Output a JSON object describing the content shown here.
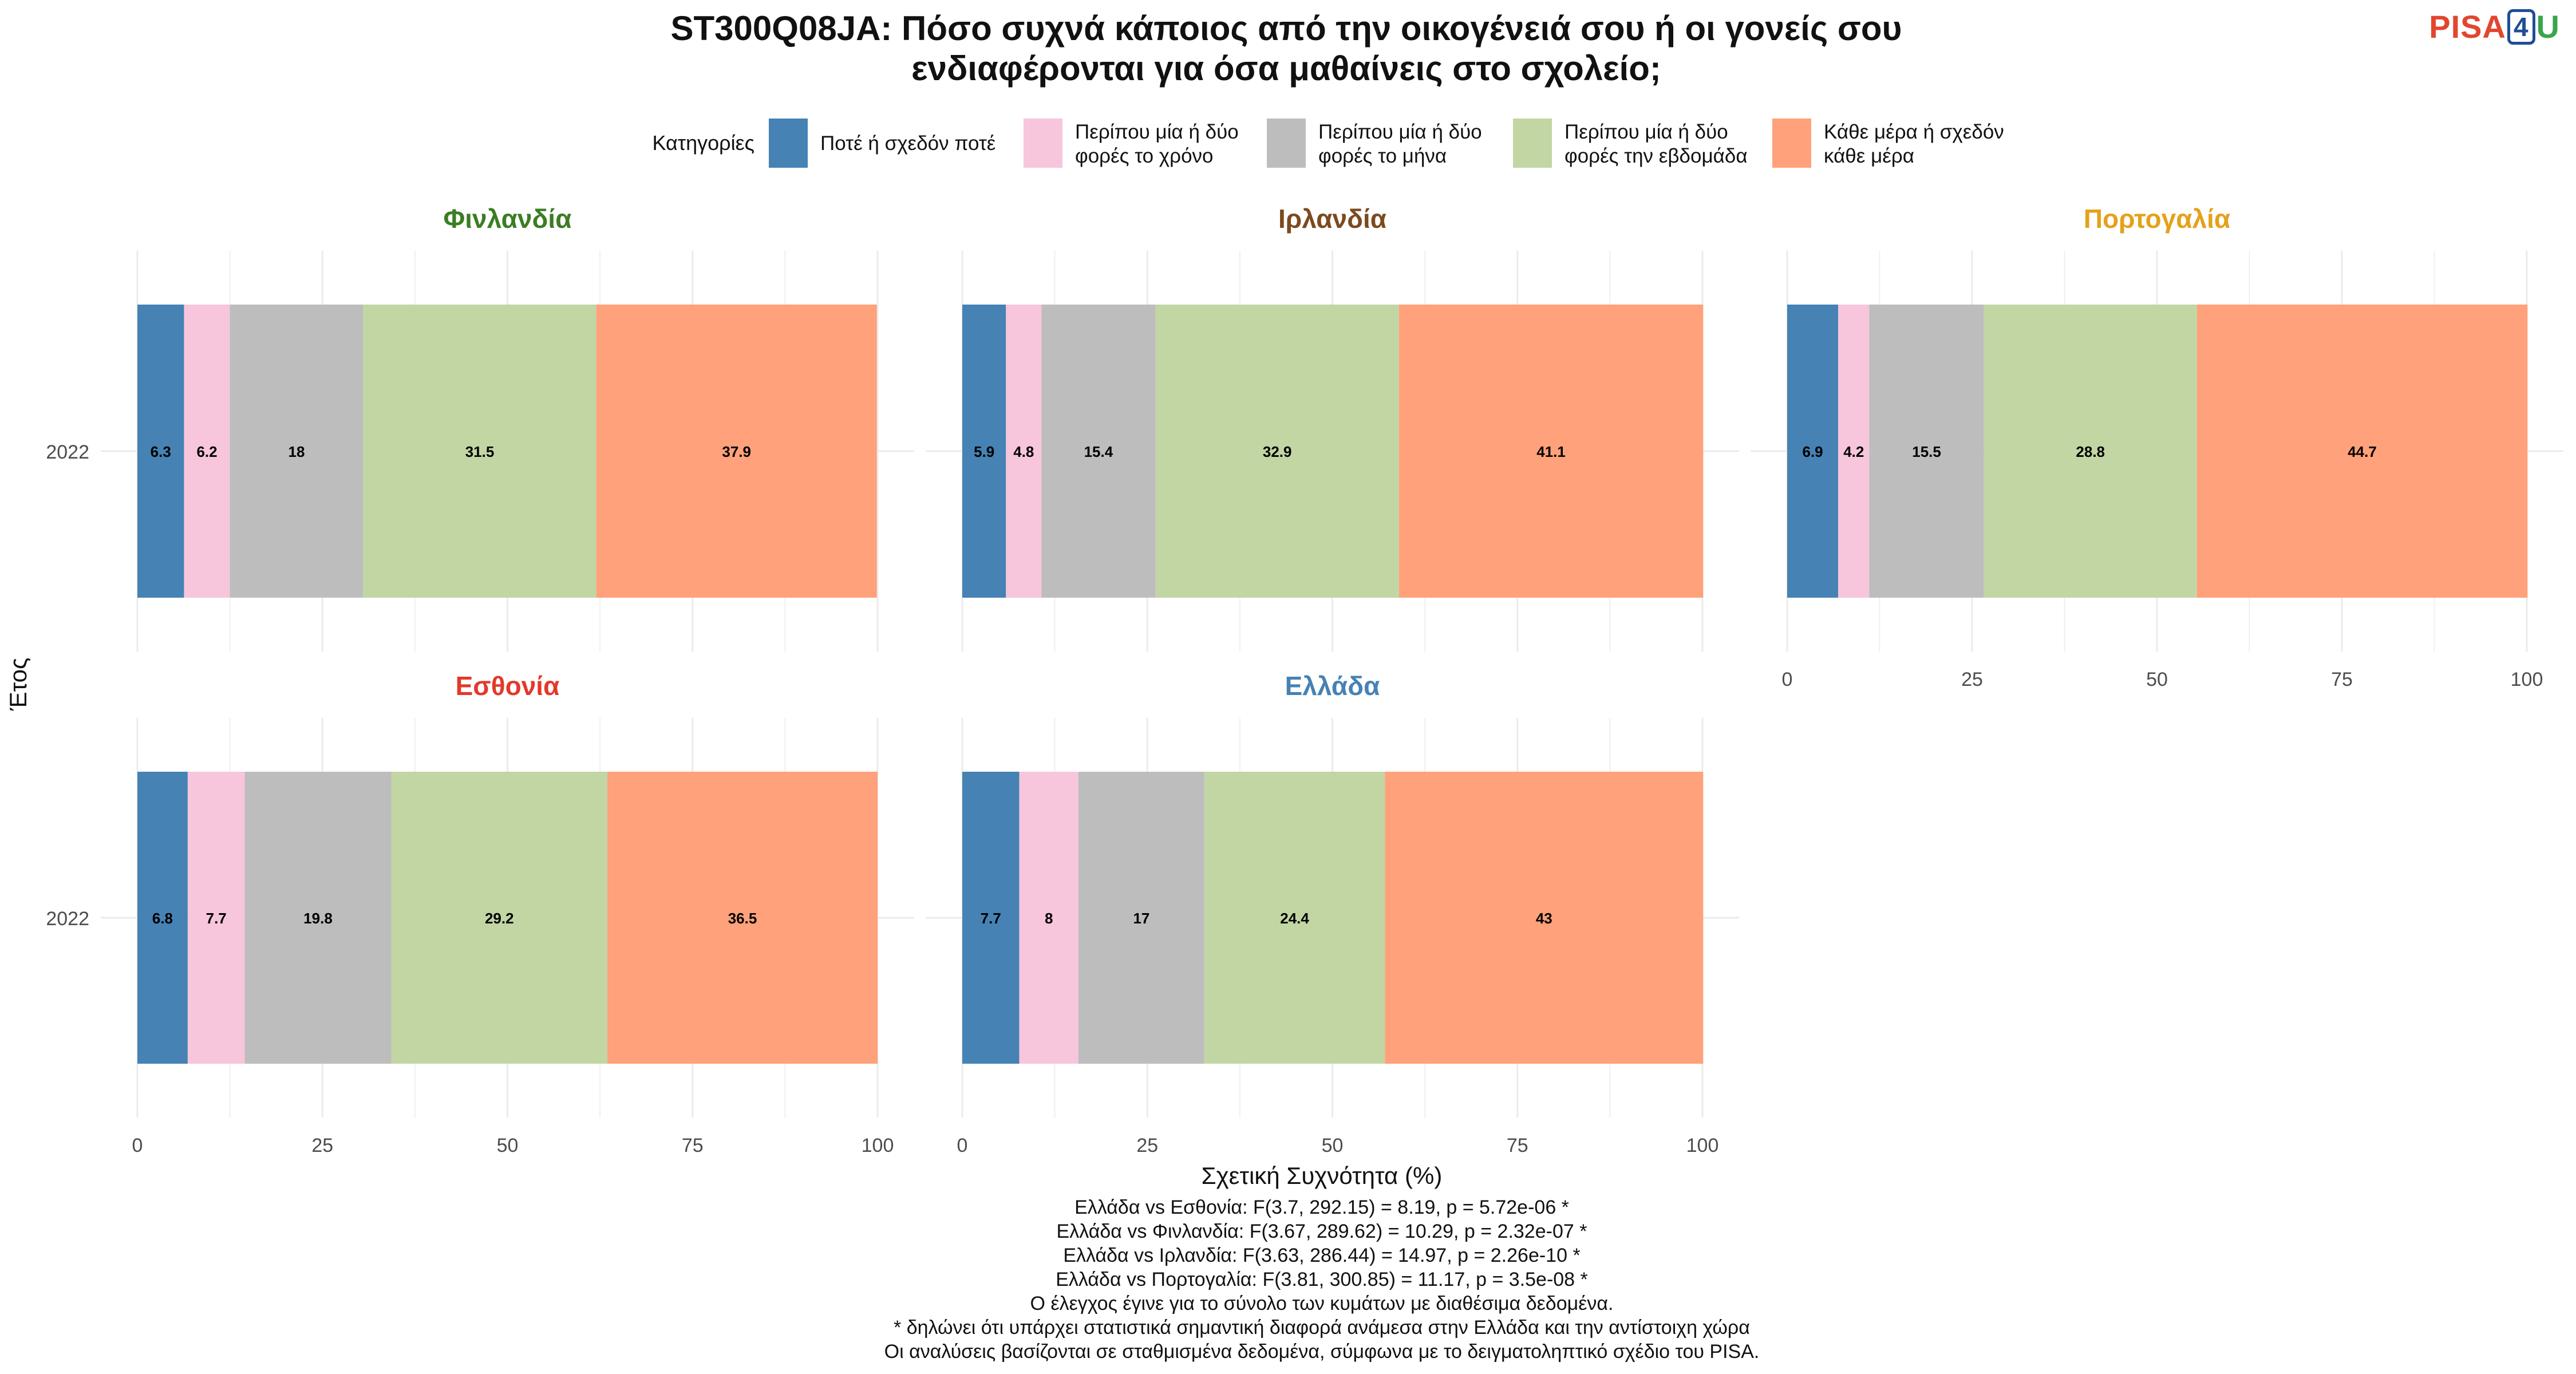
{
  "logo": {
    "part1": "PISA",
    "part2": "4",
    "part3": "U"
  },
  "colors": {
    "categories": [
      "#4682B4",
      "#F7C6DC",
      "#BDBDBD",
      "#C2D6A4",
      "#FFA17A"
    ],
    "grid": "#ebebeb"
  },
  "chart_data": {
    "type": "bar",
    "orientation": "horizontal-stacked",
    "title_lines": [
      "ST300Q08JA: Πόσο συχνά κάποιος από την οικογένειά σου ή οι γονείς σου",
      "ενδιαφέρονται για όσα μαθαίνεις στο σχολείο;"
    ],
    "xlabel": "Σχετική Συχνότητα (%)",
    "ylabel": "Έτος",
    "xlim": [
      0,
      100
    ],
    "xticks": [
      0,
      25,
      50,
      75,
      100
    ],
    "legend": {
      "title": "Κατηγορίες",
      "placement": "top",
      "items": [
        [
          "Ποτέ ή σχεδόν ποτέ"
        ],
        [
          "Περίπου μία ή δύο",
          "φορές το χρόνο"
        ],
        [
          "Περίπου μία ή δύο",
          "φορές το μήνα"
        ],
        [
          "Περίπου μία ή δύο",
          "φορές την εβδομάδα"
        ],
        [
          "Κάθε μέρα ή σχεδόν",
          "κάθε μέρα"
        ]
      ]
    },
    "panels": [
      {
        "name": "Φινλανδία",
        "color": "#3B7D23",
        "year": "2022",
        "values": [
          6.3,
          6.2,
          18,
          31.5,
          37.9
        ]
      },
      {
        "name": "Ιρλανδία",
        "color": "#7B4A1E",
        "year": "2022",
        "values": [
          5.9,
          4.8,
          15.4,
          32.9,
          41.1
        ]
      },
      {
        "name": "Πορτογαλία",
        "color": "#E5A11A",
        "year": "2022",
        "values": [
          6.9,
          4.2,
          15.5,
          28.8,
          44.7
        ]
      },
      {
        "name": "Εσθονία",
        "color": "#E2392A",
        "year": "2022",
        "values": [
          6.8,
          7.7,
          19.8,
          29.2,
          36.5
        ]
      },
      {
        "name": "Ελλάδα",
        "color": "#4682B4",
        "year": "2022",
        "values": [
          7.7,
          8,
          17,
          24.4,
          43
        ]
      }
    ],
    "caption_lines": [
      "Ελλάδα vs Εσθονία: F(3.7, 292.15) = 8.19, p = 5.72e-06 *",
      "Ελλάδα vs Φινλανδία: F(3.67, 289.62) = 10.29, p = 2.32e-07 *",
      "Ελλάδα vs Ιρλανδία: F(3.63, 286.44) = 14.97, p = 2.26e-10 *",
      "Ελλάδα vs Πορτογαλία: F(3.81, 300.85) = 11.17, p = 3.5e-08 *",
      "Ο έλεγχος έγινε για το σύνολο των κυμάτων με διαθέσιμα δεδομένα.",
      "* δηλώνει ότι υπάρχει στατιστικά σημαντική διαφορά ανάμεσα στην Ελλάδα και την αντίστοιχη χώρα",
      "Οι αναλύσεις βασίζονται σε σταθμισμένα δεδομένα, σύμφωνα με το δειγματοληπτικό σχέδιο του PISA."
    ]
  }
}
